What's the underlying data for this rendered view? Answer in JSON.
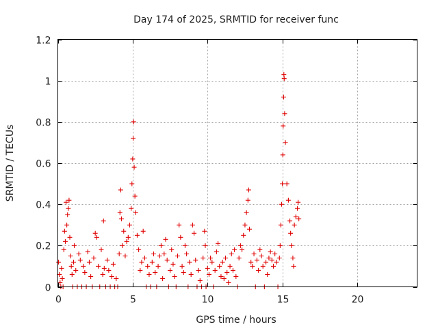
{
  "chart_data": {
    "type": "scatter",
    "title": "Day 174 of 2025, SRMTID for receiver func",
    "xlabel": "GPS time / hours",
    "ylabel": "SRMTID / TECUs",
    "xlim": [
      0,
      24
    ],
    "ylim": [
      0,
      1.2
    ],
    "xticks": [
      0,
      5,
      10,
      15,
      20
    ],
    "yticks": [
      0,
      0.2,
      0.4,
      0.6,
      0.8,
      1,
      1.2
    ],
    "ytick_labels": [
      "0",
      "0.2",
      "0.4",
      "0.6",
      "0.8",
      "1",
      "1.2"
    ],
    "grid": true,
    "marker": "+",
    "color": "#e00000",
    "series": [
      {
        "name": "SRMTID",
        "points": [
          [
            0.05,
            0.12
          ],
          [
            0.1,
            0.06
          ],
          [
            0.15,
            0.02
          ],
          [
            0.2,
            0.0
          ],
          [
            0.25,
            0.09
          ],
          [
            0.3,
            0.04
          ],
          [
            0.35,
            0.0
          ],
          [
            0.4,
            0.18
          ],
          [
            0.45,
            0.27
          ],
          [
            0.5,
            0.22
          ],
          [
            0.55,
            0.41
          ],
          [
            0.6,
            0.3
          ],
          [
            0.65,
            0.35
          ],
          [
            0.7,
            0.38
          ],
          [
            0.75,
            0.42
          ],
          [
            0.8,
            0.24
          ],
          [
            0.85,
            0.15
          ],
          [
            0.9,
            0.1
          ],
          [
            0.95,
            0.06
          ],
          [
            1.0,
            0.0
          ],
          [
            1.05,
            0.12
          ],
          [
            1.1,
            0.2
          ],
          [
            1.2,
            0.08
          ],
          [
            1.3,
            0.0
          ],
          [
            1.4,
            0.16
          ],
          [
            1.5,
            0.13
          ],
          [
            1.6,
            0.0
          ],
          [
            1.7,
            0.1
          ],
          [
            1.8,
            0.07
          ],
          [
            1.9,
            0.0
          ],
          [
            2.0,
            0.17
          ],
          [
            2.1,
            0.12
          ],
          [
            2.2,
            0.05
          ],
          [
            2.3,
            0.0
          ],
          [
            2.4,
            0.14
          ],
          [
            2.5,
            0.26
          ],
          [
            2.6,
            0.24
          ],
          [
            2.7,
            0.1
          ],
          [
            2.8,
            0.0
          ],
          [
            2.9,
            0.18
          ],
          [
            3.0,
            0.06
          ],
          [
            3.05,
            0.32
          ],
          [
            3.1,
            0.09
          ],
          [
            3.2,
            0.0
          ],
          [
            3.3,
            0.13
          ],
          [
            3.4,
            0.08
          ],
          [
            3.5,
            0.0
          ],
          [
            3.6,
            0.05
          ],
          [
            3.7,
            0.11
          ],
          [
            3.8,
            0.0
          ],
          [
            3.9,
            0.04
          ],
          [
            4.0,
            0.0
          ],
          [
            4.1,
            0.16
          ],
          [
            4.15,
            0.36
          ],
          [
            4.2,
            0.47
          ],
          [
            4.25,
            0.33
          ],
          [
            4.3,
            0.2
          ],
          [
            4.4,
            0.27
          ],
          [
            4.5,
            0.15
          ],
          [
            4.6,
            0.22
          ],
          [
            4.7,
            0.24
          ],
          [
            4.8,
            0.3
          ],
          [
            4.9,
            0.38
          ],
          [
            4.95,
            0.5
          ],
          [
            5.0,
            0.62
          ],
          [
            5.03,
            0.72
          ],
          [
            5.06,
            0.8
          ],
          [
            5.1,
            0.58
          ],
          [
            5.15,
            0.44
          ],
          [
            5.2,
            0.36
          ],
          [
            5.3,
            0.25
          ],
          [
            5.4,
            0.18
          ],
          [
            5.5,
            0.08
          ],
          [
            5.6,
            0.12
          ],
          [
            5.7,
            0.27
          ],
          [
            5.8,
            0.14
          ],
          [
            5.9,
            0.0
          ],
          [
            6.0,
            0.1
          ],
          [
            6.1,
            0.06
          ],
          [
            6.2,
            0.0
          ],
          [
            6.3,
            0.12
          ],
          [
            6.4,
            0.16
          ],
          [
            6.5,
            0.07
          ],
          [
            6.6,
            0.0
          ],
          [
            6.7,
            0.1
          ],
          [
            6.8,
            0.15
          ],
          [
            6.9,
            0.2
          ],
          [
            7.0,
            0.04
          ],
          [
            7.1,
            0.16
          ],
          [
            7.2,
            0.23
          ],
          [
            7.3,
            0.13
          ],
          [
            7.4,
            0.0
          ],
          [
            7.5,
            0.08
          ],
          [
            7.6,
            0.18
          ],
          [
            7.7,
            0.11
          ],
          [
            7.8,
            0.05
          ],
          [
            7.9,
            0.0
          ],
          [
            8.0,
            0.15
          ],
          [
            8.1,
            0.3
          ],
          [
            8.2,
            0.24
          ],
          [
            8.3,
            0.1
          ],
          [
            8.4,
            0.07
          ],
          [
            8.5,
            0.2
          ],
          [
            8.6,
            0.16
          ],
          [
            8.7,
            0.0
          ],
          [
            8.8,
            0.12
          ],
          [
            8.9,
            0.06
          ],
          [
            9.0,
            0.3
          ],
          [
            9.1,
            0.26
          ],
          [
            9.2,
            0.13
          ],
          [
            9.3,
            0.0
          ],
          [
            9.4,
            0.08
          ],
          [
            9.5,
            0.03
          ],
          [
            9.6,
            0.0
          ],
          [
            9.7,
            0.14
          ],
          [
            9.8,
            0.27
          ],
          [
            9.85,
            0.2
          ],
          [
            9.9,
            0.0
          ],
          [
            10.0,
            0.09
          ],
          [
            10.1,
            0.06
          ],
          [
            10.2,
            0.14
          ],
          [
            10.3,
            0.12
          ],
          [
            10.4,
            0.0
          ],
          [
            10.5,
            0.08
          ],
          [
            10.6,
            0.17
          ],
          [
            10.7,
            0.21
          ],
          [
            10.8,
            0.1
          ],
          [
            10.9,
            0.05
          ],
          [
            11.0,
            0.12
          ],
          [
            11.1,
            0.04
          ],
          [
            11.2,
            0.14
          ],
          [
            11.3,
            0.07
          ],
          [
            11.4,
            0.02
          ],
          [
            11.5,
            0.1
          ],
          [
            11.6,
            0.16
          ],
          [
            11.7,
            0.08
          ],
          [
            11.8,
            0.18
          ],
          [
            11.9,
            0.05
          ],
          [
            12.0,
            0.0
          ],
          [
            12.1,
            0.14
          ],
          [
            12.2,
            0.2
          ],
          [
            12.3,
            0.18
          ],
          [
            12.4,
            0.25
          ],
          [
            12.5,
            0.3
          ],
          [
            12.6,
            0.36
          ],
          [
            12.7,
            0.42
          ],
          [
            12.75,
            0.47
          ],
          [
            12.8,
            0.28
          ],
          [
            12.9,
            0.12
          ],
          [
            13.0,
            0.1
          ],
          [
            13.1,
            0.16
          ],
          [
            13.2,
            0.0
          ],
          [
            13.3,
            0.13
          ],
          [
            13.4,
            0.08
          ],
          [
            13.5,
            0.18
          ],
          [
            13.6,
            0.15
          ],
          [
            13.7,
            0.1
          ],
          [
            13.8,
            0.0
          ],
          [
            13.9,
            0.12
          ],
          [
            14.0,
            0.06
          ],
          [
            14.1,
            0.14
          ],
          [
            14.2,
            0.17
          ],
          [
            14.3,
            0.13
          ],
          [
            14.4,
            0.1
          ],
          [
            14.5,
            0.16
          ],
          [
            14.6,
            0.12
          ],
          [
            14.7,
            0.0
          ],
          [
            14.8,
            0.14
          ],
          [
            14.85,
            0.2
          ],
          [
            14.9,
            0.3
          ],
          [
            14.95,
            0.4
          ],
          [
            15.0,
            0.5
          ],
          [
            15.03,
            0.64
          ],
          [
            15.05,
            0.78
          ],
          [
            15.08,
            0.92
          ],
          [
            15.1,
            1.03
          ],
          [
            15.12,
            1.01
          ],
          [
            15.15,
            0.84
          ],
          [
            15.2,
            0.7
          ],
          [
            15.3,
            0.5
          ],
          [
            15.4,
            0.42
          ],
          [
            15.5,
            0.32
          ],
          [
            15.55,
            0.26
          ],
          [
            15.6,
            0.2
          ],
          [
            15.7,
            0.14
          ],
          [
            15.75,
            0.1
          ],
          [
            15.8,
            0.3
          ],
          [
            15.9,
            0.34
          ],
          [
            16.0,
            0.38
          ],
          [
            16.05,
            0.41
          ],
          [
            16.1,
            0.33
          ]
        ]
      }
    ]
  }
}
